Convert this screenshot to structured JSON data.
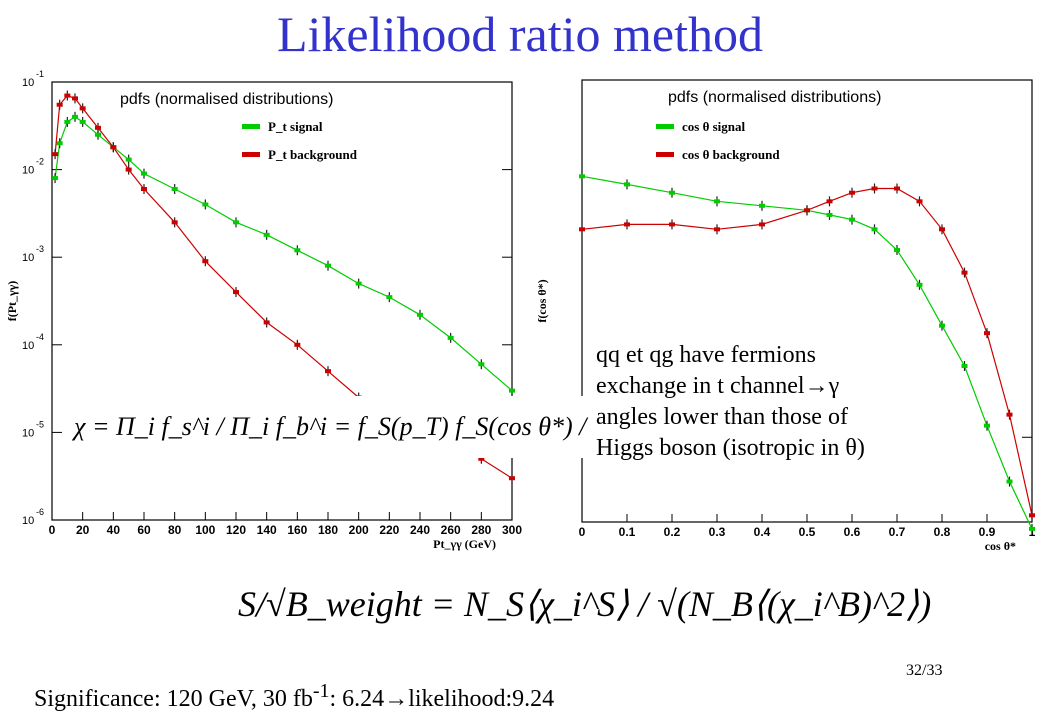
{
  "slide": {
    "title": "Likelihood ratio method",
    "page_number": "32/33",
    "significance": {
      "prefix": "Significance: 120 GeV, 30 fb",
      "superscript": "-1",
      "middle": ": 6.24",
      "suffix": "likelihood:9.24"
    },
    "left_formula": "χ = Π_i f_s^i / Π_i f_b^i = f_S(p_T) f_S(cos θ*) / f_B(p_T) f_B(cos θ*)",
    "significance_formula": "S/√B_weight = N_S⟨χ_i^S⟩ / √(N_B⟨(χ_i^B)^2⟩)",
    "annotation": {
      "line1": "qq et qg have fermions",
      "line2_prefix": "exchange in t channel",
      "line2_symbol": "γ",
      "line3": "angles lower than those of",
      "line4": "Higgs boson (isotropic in θ)"
    }
  },
  "chart_data": [
    {
      "type": "scatter",
      "title": "pdfs (normalised distributions)",
      "xlabel": "Pt_γγ (GeV)",
      "ylabel": "f(Pt_γγ)",
      "xlim": [
        0,
        300
      ],
      "ylim": [
        1e-06,
        0.1
      ],
      "yscale": "log",
      "xticks": [
        "0",
        "20",
        "40",
        "60",
        "80",
        "100",
        "120",
        "140",
        "160",
        "180",
        "200",
        "220",
        "240",
        "260",
        "280",
        "300"
      ],
      "yticks": [
        "-1",
        "-2",
        "-3",
        "-4",
        "-5",
        "-6"
      ],
      "legend_placement": "top-right",
      "series": [
        {
          "name": "P_t signal",
          "color": "#00cc00",
          "x": [
            2,
            5,
            10,
            15,
            20,
            30,
            40,
            50,
            60,
            80,
            100,
            120,
            140,
            160,
            180,
            200,
            220,
            240,
            260,
            280,
            300
          ],
          "y": [
            0.008,
            0.02,
            0.035,
            0.04,
            0.035,
            0.025,
            0.018,
            0.013,
            0.009,
            0.006,
            0.004,
            0.0025,
            0.0018,
            0.0012,
            0.0008,
            0.0005,
            0.00035,
            0.00022,
            0.00012,
            6e-05,
            3e-05
          ]
        },
        {
          "name": "P_t background",
          "color": "#cc0000",
          "x": [
            2,
            5,
            10,
            15,
            20,
            30,
            40,
            50,
            60,
            80,
            100,
            120,
            140,
            160,
            180,
            200,
            220,
            240,
            260,
            280,
            300
          ],
          "y": [
            0.015,
            0.055,
            0.07,
            0.065,
            0.05,
            0.03,
            0.018,
            0.01,
            0.006,
            0.0025,
            0.0009,
            0.0004,
            0.00018,
            0.0001,
            5e-05,
            2.5e-05,
            1.5e-05,
            1e-05,
            7e-06,
            5e-06,
            3e-06
          ]
        }
      ]
    },
    {
      "type": "scatter",
      "title": "pdfs (normalised distributions)",
      "xlabel": "cos θ*",
      "ylabel": "f(cos θ*)",
      "xlim": [
        0,
        1
      ],
      "ylim": [
        0.007,
        0.045
      ],
      "yscale": "log",
      "xticks": [
        "0",
        "0.1",
        "0.2",
        "0.3",
        "0.4",
        "0.5",
        "0.6",
        "0.7",
        "0.8",
        "0.9",
        "1"
      ],
      "yticks": [
        "-2"
      ],
      "legend_placement": "top-left",
      "series": [
        {
          "name": "cos θ signal",
          "color": "#00cc00",
          "x": [
            0,
            0.1,
            0.2,
            0.3,
            0.4,
            0.5,
            0.55,
            0.6,
            0.65,
            0.7,
            0.75,
            0.8,
            0.85,
            0.9,
            0.95,
            1.0
          ],
          "y": [
            0.03,
            0.029,
            0.028,
            0.027,
            0.0265,
            0.026,
            0.0255,
            0.025,
            0.024,
            0.022,
            0.019,
            0.016,
            0.0135,
            0.0105,
            0.0083,
            0.0068
          ]
        },
        {
          "name": "cos θ background",
          "color": "#cc0000",
          "x": [
            0,
            0.1,
            0.2,
            0.3,
            0.4,
            0.5,
            0.55,
            0.6,
            0.65,
            0.7,
            0.75,
            0.8,
            0.85,
            0.9,
            0.95,
            1.0
          ],
          "y": [
            0.024,
            0.0245,
            0.0245,
            0.024,
            0.0245,
            0.026,
            0.027,
            0.028,
            0.0285,
            0.0285,
            0.027,
            0.024,
            0.02,
            0.0155,
            0.011,
            0.0072
          ]
        }
      ]
    }
  ]
}
